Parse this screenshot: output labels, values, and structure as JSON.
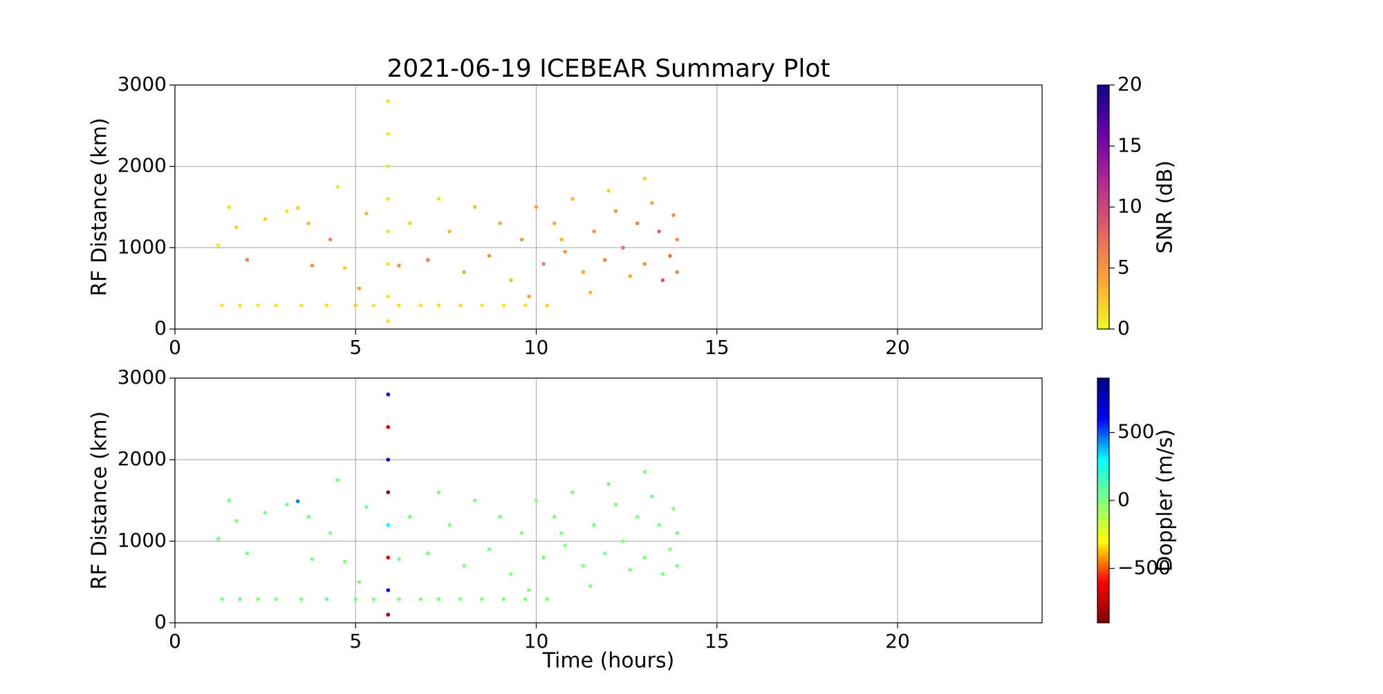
{
  "chart_data": [
    {
      "type": "scatter",
      "title": "2021-06-19 ICEBEAR Summary Plot",
      "y_label": "RF Distance (km)",
      "xlim": [
        0,
        24
      ],
      "xticks": [
        0,
        5,
        10,
        15,
        20
      ],
      "ylim": [
        0,
        3000
      ],
      "yticks": [
        0,
        1000,
        2000,
        3000
      ],
      "grid": true,
      "colormap": "plasma_r",
      "colorbar_label": "SNR (dB)",
      "clim": [
        0,
        20
      ],
      "cticks": [
        0,
        5,
        10,
        15,
        20
      ],
      "series": [
        {
          "x": [
            1.3,
            1.8,
            2.3,
            2.8,
            3.5,
            4.2,
            5.0,
            5.5,
            6.2,
            6.8,
            7.3,
            7.9,
            8.5,
            9.1,
            9.7,
            10.3,
            5.9,
            5.9,
            5.9,
            5.9,
            5.9,
            5.9,
            5.9,
            5.9,
            1.2,
            1.5,
            1.7,
            2.0,
            2.5,
            3.1,
            3.4,
            3.7,
            3.8,
            4.3,
            4.5,
            4.7,
            5.1,
            5.3,
            6.2,
            6.5,
            7.0,
            7.3,
            7.6,
            8.0,
            8.3,
            8.7,
            9.0,
            9.3,
            9.6,
            10.0,
            10.2,
            10.5,
            10.8,
            11.0,
            11.3,
            11.6,
            11.9,
            12.2,
            12.4,
            12.6,
            12.8,
            13.0,
            13.2,
            13.4,
            13.5,
            13.7,
            13.8,
            13.9,
            13.9,
            12.0,
            10.7,
            9.8,
            11.5,
            13.0
          ],
          "y": [
            290,
            290,
            290,
            290,
            290,
            290,
            290,
            290,
            290,
            290,
            290,
            290,
            290,
            290,
            290,
            290,
            100,
            400,
            800,
            1200,
            1600,
            2000,
            2400,
            2800,
            1030,
            1500,
            1250,
            850,
            1350,
            1450,
            1490,
            1300,
            780,
            1100,
            1750,
            750,
            500,
            1420,
            780,
            1300,
            850,
            1600,
            1200,
            700,
            1500,
            900,
            1300,
            600,
            1100,
            1500,
            800,
            1300,
            950,
            1600,
            700,
            1200,
            850,
            1450,
            1000,
            650,
            1300,
            800,
            1550,
            1200,
            600,
            900,
            1400,
            700,
            1100,
            1700,
            1100,
            400,
            450,
            1850
          ],
          "c": [
            1,
            1,
            1,
            1,
            1,
            1,
            2,
            1,
            1,
            1,
            1,
            1,
            1,
            1,
            1,
            2,
            1,
            1,
            1,
            1,
            1,
            1,
            1,
            1,
            1,
            1,
            2,
            6,
            2,
            1,
            2,
            3,
            5,
            6,
            1,
            2,
            4,
            3,
            5,
            2,
            6,
            1,
            3,
            4,
            3,
            5,
            4,
            3,
            5,
            4,
            6,
            4,
            5,
            3,
            4,
            5,
            6,
            5,
            7,
            4,
            6,
            5,
            4,
            8,
            9,
            7,
            5,
            6,
            5,
            2,
            3,
            4,
            3,
            2
          ]
        }
      ]
    },
    {
      "type": "scatter",
      "y_label": "RF Distance (km)",
      "x_label": "Time (hours)",
      "xlim": [
        0,
        24
      ],
      "xticks": [
        0,
        5,
        10,
        15,
        20
      ],
      "ylim": [
        0,
        3000
      ],
      "yticks": [
        0,
        1000,
        2000,
        3000
      ],
      "grid": true,
      "colormap": "jet_r",
      "colorbar_label": "Doppler (m/s)",
      "clim": [
        -900,
        900
      ],
      "cticks": [
        {
          "value": -500,
          "label": "−500"
        },
        0,
        500
      ],
      "series": [
        {
          "x": [
            1.3,
            1.8,
            2.3,
            2.8,
            3.5,
            4.2,
            5.0,
            5.5,
            6.2,
            6.8,
            7.3,
            7.9,
            8.5,
            9.1,
            9.7,
            10.3,
            5.9,
            5.9,
            5.9,
            5.9,
            5.9,
            5.9,
            5.9,
            5.9,
            1.2,
            1.5,
            1.7,
            2.0,
            2.5,
            3.1,
            3.4,
            3.7,
            3.8,
            4.3,
            4.5,
            4.7,
            5.1,
            5.3,
            6.2,
            6.5,
            7.0,
            7.3,
            7.6,
            8.0,
            8.3,
            8.7,
            9.0,
            9.3,
            9.6,
            10.0,
            10.2,
            10.5,
            10.8,
            11.0,
            11.3,
            11.6,
            11.9,
            12.2,
            12.4,
            12.6,
            12.8,
            13.0,
            13.2,
            13.4,
            13.5,
            13.7,
            13.8,
            13.9,
            13.9,
            12.0,
            10.7,
            9.8,
            11.5,
            13.0
          ],
          "y": [
            290,
            290,
            290,
            290,
            290,
            290,
            290,
            290,
            290,
            290,
            290,
            290,
            290,
            290,
            290,
            290,
            100,
            400,
            800,
            1200,
            1600,
            2000,
            2400,
            2800,
            1030,
            1500,
            1250,
            850,
            1350,
            1450,
            1490,
            1300,
            780,
            1100,
            1750,
            750,
            500,
            1420,
            780,
            1300,
            850,
            1600,
            1200,
            700,
            1500,
            900,
            1300,
            600,
            1100,
            1500,
            800,
            1300,
            950,
            1600,
            700,
            1200,
            850,
            1450,
            1000,
            650,
            1300,
            800,
            1550,
            1200,
            600,
            900,
            1400,
            700,
            1100,
            1700,
            1100,
            400,
            450,
            1850
          ],
          "c": [
            0,
            10,
            0,
            -10,
            0,
            20,
            0,
            0,
            -20,
            0,
            0,
            10,
            0,
            0,
            -10,
            0,
            -800,
            700,
            -600,
            300,
            -850,
            800,
            -700,
            600,
            0,
            20,
            0,
            10,
            0,
            0,
            450,
            30,
            0,
            0,
            0,
            0,
            -20,
            0,
            0,
            10,
            0,
            0,
            -10,
            0,
            0,
            20,
            0,
            0,
            -20,
            0,
            10,
            0,
            0,
            -10,
            0,
            0,
            20,
            0,
            0,
            -10,
            0,
            0,
            10,
            0,
            0,
            -20,
            0,
            0,
            10,
            0,
            0,
            -10,
            0,
            0
          ]
        }
      ]
    }
  ]
}
